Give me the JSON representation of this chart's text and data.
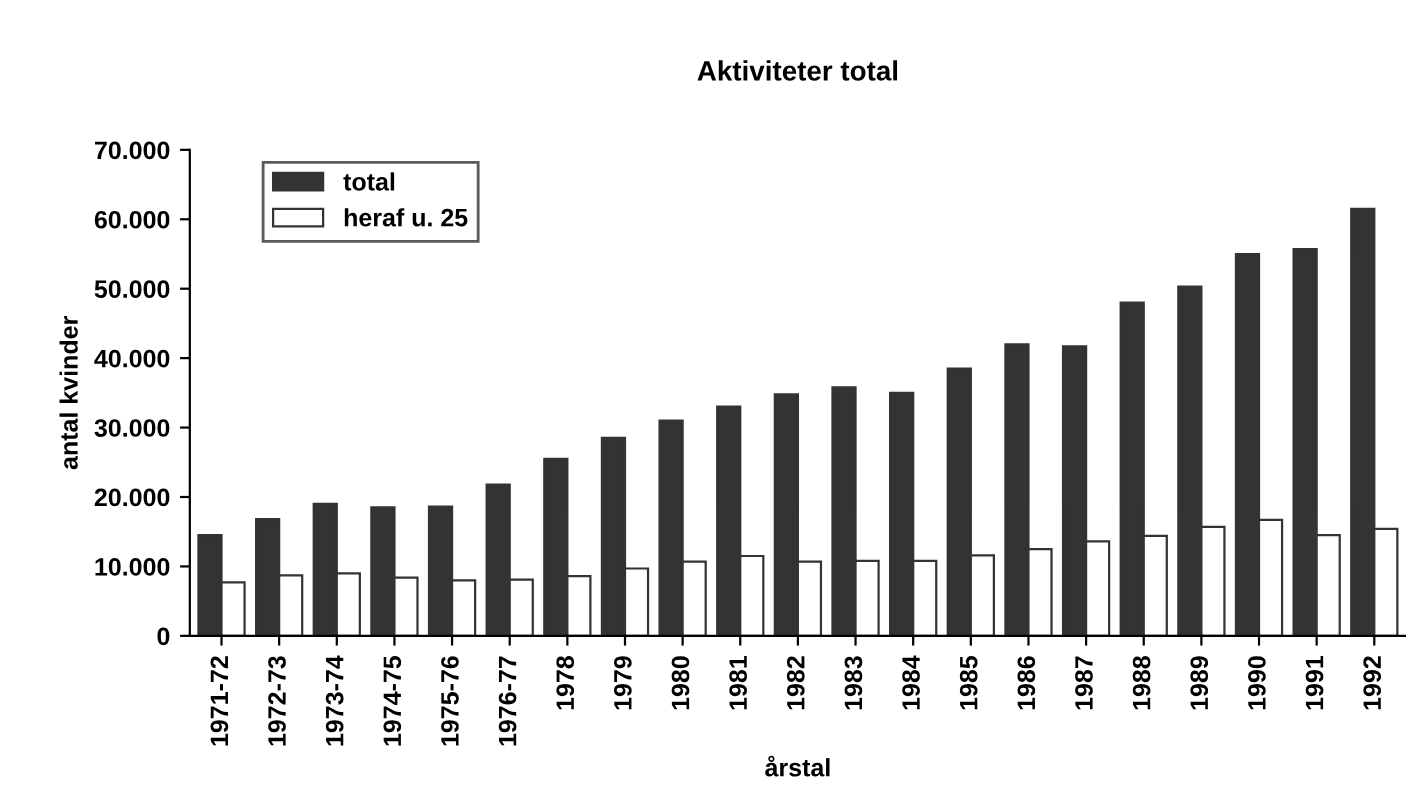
{
  "chart_data": {
    "type": "bar",
    "title": "Aktiviteter total",
    "xlabel": "årstal",
    "ylabel": "antal kvinder",
    "categories": [
      "1971-72",
      "1972-73",
      "1973-74",
      "1974-75",
      "1975-76",
      "1976-77",
      "1978",
      "1979",
      "1980",
      "1981",
      "1982",
      "1983",
      "1984",
      "1985",
      "1986",
      "1987",
      "1988",
      "1989",
      "1990",
      "1991",
      "1992"
    ],
    "series": [
      {
        "name": "total",
        "color": "#333333",
        "values": [
          14500,
          16800,
          19000,
          18500,
          18600,
          21800,
          25500,
          28500,
          31000,
          33000,
          34800,
          35800,
          35000,
          38500,
          42000,
          41700,
          48000,
          50300,
          55000,
          55700,
          61500
        ]
      },
      {
        "name": "heraf u. 25",
        "color": "#ffffff",
        "values": [
          7700,
          8700,
          9000,
          8400,
          8000,
          8100,
          8600,
          9700,
          10700,
          11500,
          10700,
          10800,
          10800,
          11600,
          12500,
          13600,
          14400,
          15700,
          16700,
          14500,
          15400
        ]
      }
    ],
    "ylim": [
      0,
      70000
    ],
    "yticks": [
      0,
      {
        "value": 10000,
        "label": "10.000"
      },
      {
        "value": 20000,
        "label": "20.000"
      },
      {
        "value": 30000,
        "label": "30.000"
      },
      {
        "value": 40000,
        "label": "40.000"
      },
      {
        "value": 50000,
        "label": "50.000"
      },
      {
        "value": 60000,
        "label": "60.000"
      },
      {
        "value": 70000,
        "label": "70.000"
      }
    ],
    "grid": false,
    "legend": "top left"
  }
}
